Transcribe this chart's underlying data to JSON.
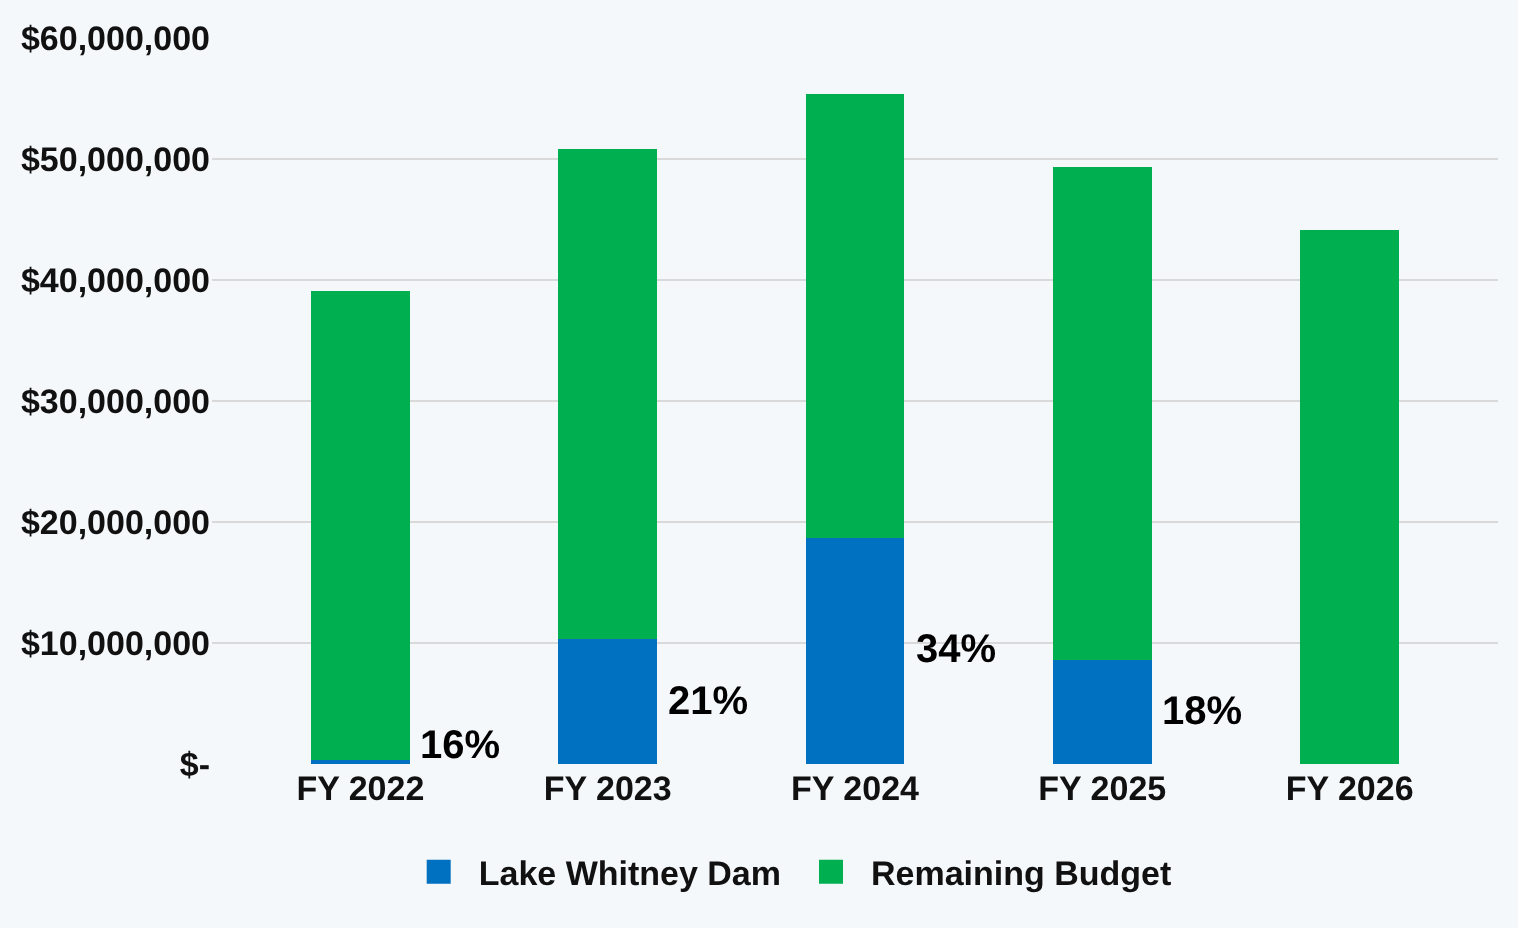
{
  "chart_data": {
    "type": "bar",
    "stacked": true,
    "categories": [
      "FY 2022",
      "FY 2023",
      "FY 2024",
      "FY 2025",
      "FY 2026"
    ],
    "series": [
      {
        "name": "Lake Whitney Dam",
        "color": "#0070c0",
        "values": [
          300000,
          10300000,
          18700000,
          8600000,
          0
        ]
      },
      {
        "name": "Remaining Budget",
        "color": "#00b050",
        "values": [
          38800000,
          40500000,
          36700000,
          40700000,
          44100000
        ]
      }
    ],
    "ylim": [
      0,
      60000000
    ],
    "yticks": [
      {
        "value": 0,
        "label": "$-"
      },
      {
        "value": 10000000,
        "label": "$10,000,000"
      },
      {
        "value": 20000000,
        "label": "$20,000,000"
      },
      {
        "value": 30000000,
        "label": "$30,000,000"
      },
      {
        "value": 40000000,
        "label": "$40,000,000"
      },
      {
        "value": 50000000,
        "label": "$50,000,000"
      },
      {
        "value": 60000000,
        "label": "$60,000,000"
      }
    ],
    "annotations": [
      "16%",
      "21%",
      "34%",
      "18%"
    ],
    "grid": "y",
    "legend": "bottom"
  }
}
